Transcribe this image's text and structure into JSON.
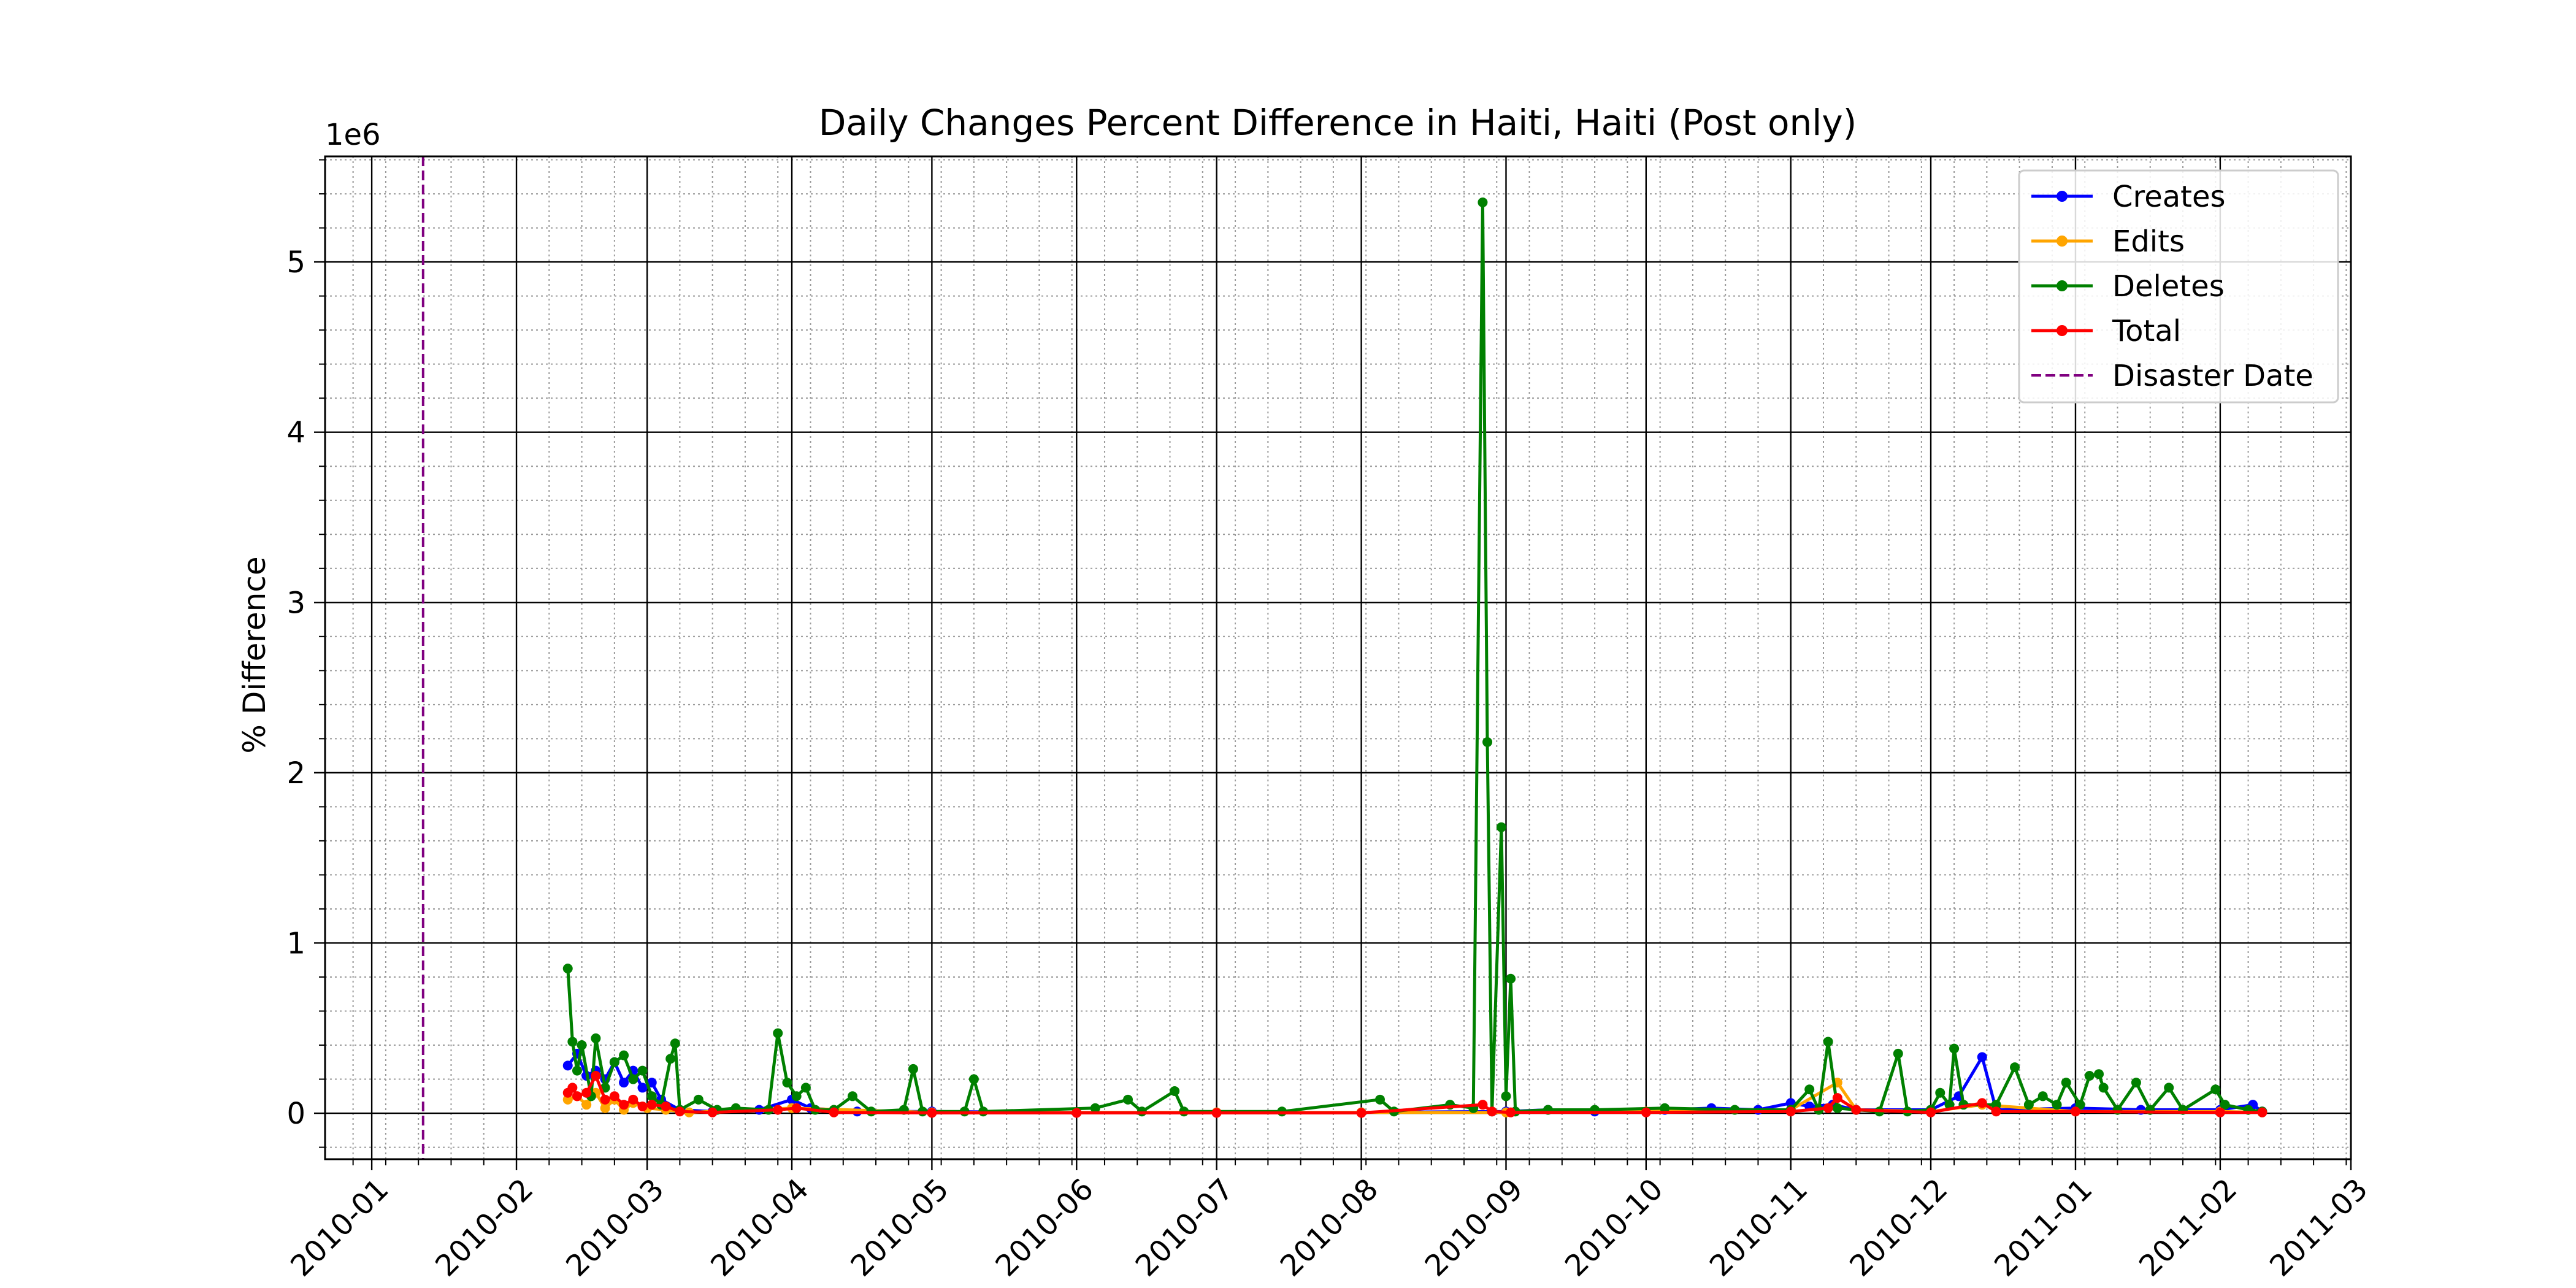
{
  "chart_data": {
    "type": "line",
    "title": "Daily Changes Percent Difference in Haiti, Haiti (Post only)",
    "xlabel": "",
    "ylabel": "% Difference",
    "y_offset_label": "1e6",
    "y_scale_factor": 1000000,
    "xlim": [
      "2009-12-22",
      "2011-03-01"
    ],
    "ylim": [
      -0.27,
      5.62
    ],
    "x_ticks": [
      "2010-01-01",
      "2010-02-01",
      "2010-03-01",
      "2010-04-01",
      "2010-05-01",
      "2010-06-01",
      "2010-07-01",
      "2010-08-01",
      "2010-09-01",
      "2010-10-01",
      "2010-11-01",
      "2010-12-01",
      "2011-01-01",
      "2011-02-01",
      "2011-03-01"
    ],
    "x_tick_labels": [
      "2010-01",
      "2010-02",
      "2010-03",
      "2010-04",
      "2010-05",
      "2010-06",
      "2010-07",
      "2010-08",
      "2010-09",
      "2010-10",
      "2010-11",
      "2010-12",
      "2011-01",
      "2011-02",
      "2011-03"
    ],
    "y_ticks": [
      0,
      1,
      2,
      3,
      4,
      5
    ],
    "y_tick_labels": [
      "0",
      "1",
      "2",
      "3",
      "4",
      "5"
    ],
    "grid": "major and minor",
    "legend_position": "top-right",
    "disaster_date": "2010-01-12",
    "series": [
      {
        "name": "Creates",
        "color": "#0000ff",
        "points": [
          [
            "2010-02-12",
            0.28
          ],
          [
            "2010-02-14",
            0.35
          ],
          [
            "2010-02-16",
            0.22
          ],
          [
            "2010-02-18",
            0.25
          ],
          [
            "2010-02-20",
            0.2
          ],
          [
            "2010-02-22",
            0.3
          ],
          [
            "2010-02-24",
            0.18
          ],
          [
            "2010-02-26",
            0.25
          ],
          [
            "2010-02-28",
            0.15
          ],
          [
            "2010-03-02",
            0.18
          ],
          [
            "2010-03-04",
            0.08
          ],
          [
            "2010-03-08",
            0.02
          ],
          [
            "2010-03-15",
            0.01
          ],
          [
            "2010-03-25",
            0.02
          ],
          [
            "2010-04-01",
            0.08
          ],
          [
            "2010-04-05",
            0.03
          ],
          [
            "2010-04-15",
            0.01
          ],
          [
            "2010-05-01",
            0.01
          ],
          [
            "2010-06-01",
            0.005
          ],
          [
            "2010-07-01",
            0.005
          ],
          [
            "2010-08-01",
            0.005
          ],
          [
            "2010-09-01",
            0.01
          ],
          [
            "2010-09-10",
            0.02
          ],
          [
            "2010-09-20",
            0.01
          ],
          [
            "2010-10-05",
            0.02
          ],
          [
            "2010-10-15",
            0.03
          ],
          [
            "2010-10-25",
            0.02
          ],
          [
            "2010-11-01",
            0.06
          ],
          [
            "2010-11-05",
            0.04
          ],
          [
            "2010-11-10",
            0.05
          ],
          [
            "2010-11-15",
            0.02
          ],
          [
            "2010-12-01",
            0.02
          ],
          [
            "2010-12-07",
            0.1
          ],
          [
            "2010-12-12",
            0.33
          ],
          [
            "2010-12-15",
            0.02
          ],
          [
            "2011-01-01",
            0.03
          ],
          [
            "2011-01-15",
            0.02
          ],
          [
            "2011-02-01",
            0.02
          ],
          [
            "2011-02-08",
            0.05
          ],
          [
            "2011-02-10",
            0.01
          ]
        ]
      },
      {
        "name": "Edits",
        "color": "#ffa500",
        "points": [
          [
            "2010-02-12",
            0.08
          ],
          [
            "2010-02-14",
            0.1
          ],
          [
            "2010-02-16",
            0.05
          ],
          [
            "2010-02-18",
            0.12
          ],
          [
            "2010-02-20",
            0.03
          ],
          [
            "2010-02-22",
            0.08
          ],
          [
            "2010-02-24",
            0.02
          ],
          [
            "2010-02-26",
            0.06
          ],
          [
            "2010-03-01",
            0.03
          ],
          [
            "2010-03-05",
            0.02
          ],
          [
            "2010-03-10",
            0.005
          ],
          [
            "2010-04-01",
            0.03
          ],
          [
            "2010-05-01",
            0.005
          ],
          [
            "2010-06-01",
            0.005
          ],
          [
            "2010-07-01",
            0.005
          ],
          [
            "2010-08-01",
            0.005
          ],
          [
            "2010-09-01",
            0.005
          ],
          [
            "2010-10-01",
            0.01
          ],
          [
            "2010-11-01",
            0.02
          ],
          [
            "2010-11-11",
            0.18
          ],
          [
            "2010-11-15",
            0.02
          ],
          [
            "2010-12-01",
            0.01
          ],
          [
            "2010-12-12",
            0.05
          ],
          [
            "2011-01-01",
            0.01
          ],
          [
            "2011-02-01",
            0.01
          ],
          [
            "2011-02-10",
            0.005
          ]
        ]
      },
      {
        "name": "Deletes",
        "color": "#008000",
        "points": [
          [
            "2010-02-12",
            0.85
          ],
          [
            "2010-02-13",
            0.42
          ],
          [
            "2010-02-14",
            0.25
          ],
          [
            "2010-02-15",
            0.4
          ],
          [
            "2010-02-17",
            0.1
          ],
          [
            "2010-02-18",
            0.44
          ],
          [
            "2010-02-20",
            0.15
          ],
          [
            "2010-02-22",
            0.3
          ],
          [
            "2010-02-24",
            0.34
          ],
          [
            "2010-02-26",
            0.2
          ],
          [
            "2010-02-28",
            0.25
          ],
          [
            "2010-03-02",
            0.1
          ],
          [
            "2010-03-04",
            0.05
          ],
          [
            "2010-03-06",
            0.32
          ],
          [
            "2010-03-07",
            0.41
          ],
          [
            "2010-03-08",
            0.02
          ],
          [
            "2010-03-12",
            0.08
          ],
          [
            "2010-03-16",
            0.02
          ],
          [
            "2010-03-20",
            0.03
          ],
          [
            "2010-03-27",
            0.02
          ],
          [
            "2010-03-29",
            0.47
          ],
          [
            "2010-03-31",
            0.18
          ],
          [
            "2010-04-02",
            0.1
          ],
          [
            "2010-04-04",
            0.15
          ],
          [
            "2010-04-06",
            0.02
          ],
          [
            "2010-04-10",
            0.02
          ],
          [
            "2010-04-14",
            0.1
          ],
          [
            "2010-04-18",
            0.01
          ],
          [
            "2010-04-25",
            0.02
          ],
          [
            "2010-04-27",
            0.26
          ],
          [
            "2010-04-29",
            0.01
          ],
          [
            "2010-05-08",
            0.01
          ],
          [
            "2010-05-10",
            0.2
          ],
          [
            "2010-05-12",
            0.01
          ],
          [
            "2010-06-05",
            0.03
          ],
          [
            "2010-06-12",
            0.08
          ],
          [
            "2010-06-15",
            0.01
          ],
          [
            "2010-06-22",
            0.13
          ],
          [
            "2010-06-24",
            0.01
          ],
          [
            "2010-07-15",
            0.01
          ],
          [
            "2010-08-05",
            0.08
          ],
          [
            "2010-08-08",
            0.01
          ],
          [
            "2010-08-20",
            0.05
          ],
          [
            "2010-08-25",
            0.03
          ],
          [
            "2010-08-27",
            5.35
          ],
          [
            "2010-08-28",
            2.18
          ],
          [
            "2010-08-29",
            0.01
          ],
          [
            "2010-08-31",
            1.68
          ],
          [
            "2010-09-01",
            0.1
          ],
          [
            "2010-09-02",
            0.79
          ],
          [
            "2010-09-03",
            0.01
          ],
          [
            "2010-09-10",
            0.02
          ],
          [
            "2010-09-20",
            0.02
          ],
          [
            "2010-10-05",
            0.03
          ],
          [
            "2010-10-20",
            0.02
          ],
          [
            "2010-11-01",
            0.02
          ],
          [
            "2010-11-05",
            0.14
          ],
          [
            "2010-11-07",
            0.02
          ],
          [
            "2010-11-09",
            0.42
          ],
          [
            "2010-11-11",
            0.03
          ],
          [
            "2010-11-15",
            0.02
          ],
          [
            "2010-11-20",
            0.01
          ],
          [
            "2010-11-24",
            0.35
          ],
          [
            "2010-11-26",
            0.01
          ],
          [
            "2010-12-01",
            0.02
          ],
          [
            "2010-12-03",
            0.12
          ],
          [
            "2010-12-05",
            0.05
          ],
          [
            "2010-12-06",
            0.38
          ],
          [
            "2010-12-08",
            0.05
          ],
          [
            "2010-12-15",
            0.05
          ],
          [
            "2010-12-19",
            0.27
          ],
          [
            "2010-12-22",
            0.05
          ],
          [
            "2010-12-25",
            0.1
          ],
          [
            "2010-12-28",
            0.05
          ],
          [
            "2010-12-30",
            0.18
          ],
          [
            "2011-01-02",
            0.05
          ],
          [
            "2011-01-04",
            0.22
          ],
          [
            "2011-01-06",
            0.23
          ],
          [
            "2011-01-07",
            0.15
          ],
          [
            "2011-01-10",
            0.02
          ],
          [
            "2011-01-14",
            0.18
          ],
          [
            "2011-01-17",
            0.02
          ],
          [
            "2011-01-21",
            0.15
          ],
          [
            "2011-01-24",
            0.02
          ],
          [
            "2011-01-31",
            0.14
          ],
          [
            "2011-02-02",
            0.05
          ],
          [
            "2011-02-07",
            0.02
          ],
          [
            "2011-02-10",
            0.01
          ]
        ]
      },
      {
        "name": "Total",
        "color": "#ff0000",
        "points": [
          [
            "2010-02-12",
            0.12
          ],
          [
            "2010-02-13",
            0.15
          ],
          [
            "2010-02-14",
            0.1
          ],
          [
            "2010-02-16",
            0.12
          ],
          [
            "2010-02-18",
            0.22
          ],
          [
            "2010-02-20",
            0.08
          ],
          [
            "2010-02-22",
            0.1
          ],
          [
            "2010-02-24",
            0.05
          ],
          [
            "2010-02-26",
            0.08
          ],
          [
            "2010-02-28",
            0.04
          ],
          [
            "2010-03-02",
            0.05
          ],
          [
            "2010-03-05",
            0.04
          ],
          [
            "2010-03-08",
            0.01
          ],
          [
            "2010-03-15",
            0.005
          ],
          [
            "2010-03-29",
            0.02
          ],
          [
            "2010-04-02",
            0.03
          ],
          [
            "2010-04-10",
            0.005
          ],
          [
            "2010-05-01",
            0.002
          ],
          [
            "2010-06-01",
            0.002
          ],
          [
            "2010-07-01",
            0.002
          ],
          [
            "2010-08-01",
            0.002
          ],
          [
            "2010-08-27",
            0.05
          ],
          [
            "2010-08-29",
            0.01
          ],
          [
            "2010-09-02",
            0.005
          ],
          [
            "2010-10-01",
            0.005
          ],
          [
            "2010-11-01",
            0.01
          ],
          [
            "2010-11-09",
            0.03
          ],
          [
            "2010-11-11",
            0.09
          ],
          [
            "2010-11-15",
            0.02
          ],
          [
            "2010-12-01",
            0.005
          ],
          [
            "2010-12-12",
            0.06
          ],
          [
            "2010-12-15",
            0.01
          ],
          [
            "2011-01-01",
            0.01
          ],
          [
            "2011-02-01",
            0.005
          ],
          [
            "2011-02-10",
            0.005
          ]
        ]
      }
    ],
    "legend": [
      {
        "label": "Creates",
        "color": "#0000ff",
        "style": "marker-line"
      },
      {
        "label": "Edits",
        "color": "#ffa500",
        "style": "marker-line"
      },
      {
        "label": "Deletes",
        "color": "#008000",
        "style": "marker-line"
      },
      {
        "label": "Total",
        "color": "#ff0000",
        "style": "marker-line"
      },
      {
        "label": "Disaster Date",
        "color": "#800080",
        "style": "dashed"
      }
    ]
  }
}
